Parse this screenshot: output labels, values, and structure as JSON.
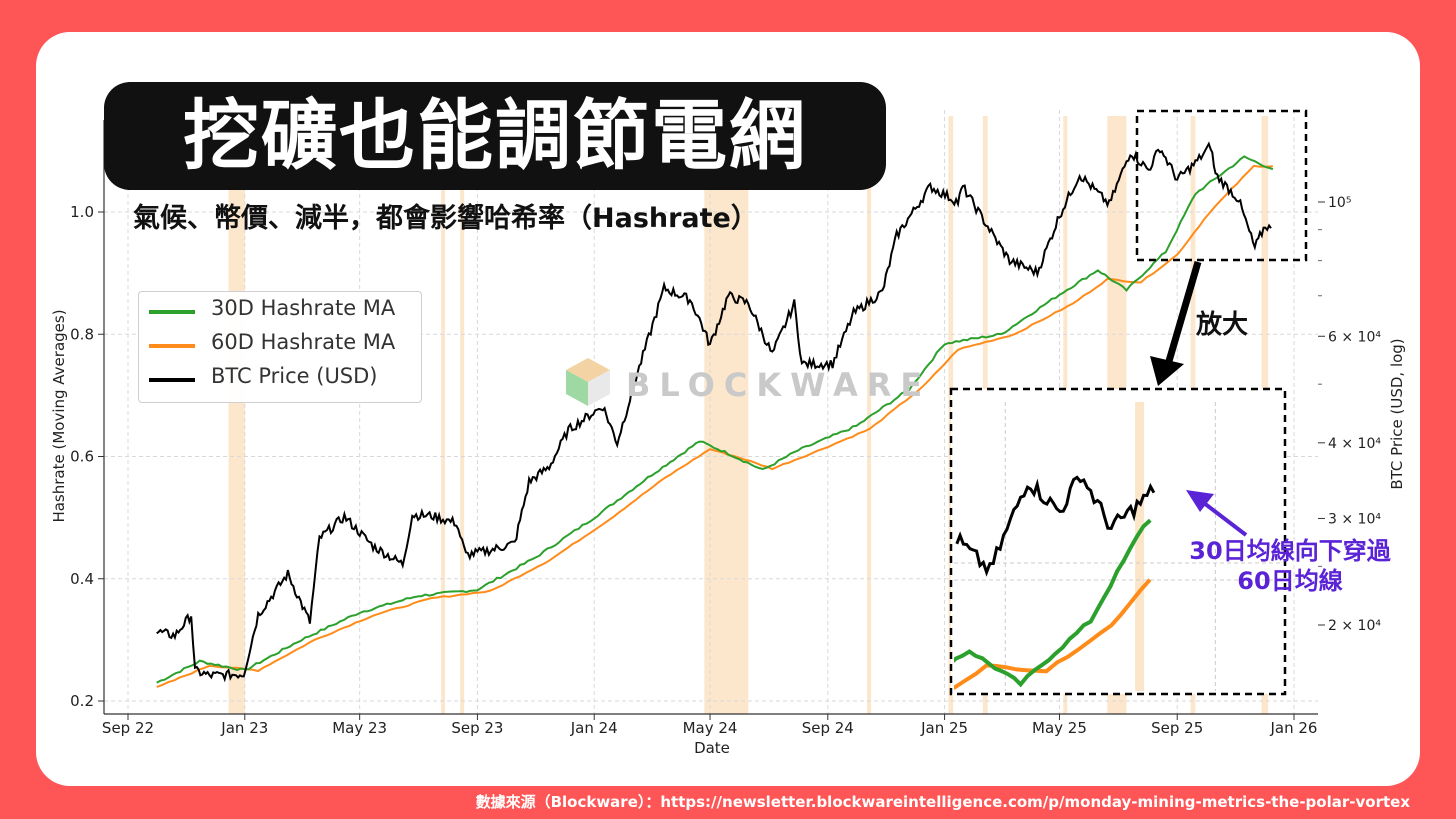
{
  "title": "挖礦也能調節電網",
  "subtitle": "氣候、幣價、減半，都會影響哈希率（Hashrate）",
  "source_note": "數據來源（Blockware）：https://newsletter.blockwareintelligence.com/p/monday-mining-metrics-the-polar-vortex",
  "zoom_label": "放大",
  "annotation": [
    "30日均線向下穿過",
    "60日均線"
  ],
  "watermark": "BLOCKWARE",
  "colors": {
    "background": "#fe5656",
    "ma30": "#2ca02c",
    "ma60": "#ff8c1a",
    "btc": "#000000",
    "shade": "#fbe3c4",
    "annotation": "#5b23d6"
  },
  "chart_data": {
    "type": "line",
    "xlabel": "Date",
    "ylabel": "Hashrate (Moving Averages)",
    "y2label": "BTC Price (USD, log)",
    "x_ticks": [
      "Sep 22",
      "Jan 23",
      "May 23",
      "Sep 23",
      "Jan 24",
      "May 24",
      "Sep 24",
      "Jan 25",
      "May 25",
      "Sep 25",
      "Jan 26"
    ],
    "y_ticks": [
      "0.2",
      "0.4",
      "0.6",
      "0.8",
      "1.0"
    ],
    "ylim": [
      0.185,
      1.08
    ],
    "y2_ticks": [
      {
        "value": 20000,
        "label": "2 × 10⁴"
      },
      {
        "value": 30000,
        "label": "3 × 10⁴"
      },
      {
        "value": 40000,
        "label": "4 × 10⁴"
      },
      {
        "value": 60000,
        "label": "6 × 10⁴"
      },
      {
        "value": 100000,
        "label": "10⁵"
      }
    ],
    "y2_scale": "log",
    "legend_position": "upper-left",
    "grid": true,
    "series": [
      {
        "name": "30D Hashrate MA",
        "points": [
          [
            "2022-10-01",
            0.23
          ],
          [
            "2022-11-15",
            0.265
          ],
          [
            "2023-01-01",
            0.25
          ],
          [
            "2023-03-01",
            0.3
          ],
          [
            "2023-05-01",
            0.345
          ],
          [
            "2023-07-01",
            0.372
          ],
          [
            "2023-09-01",
            0.382
          ],
          [
            "2023-11-01",
            0.435
          ],
          [
            "2024-01-01",
            0.5
          ],
          [
            "2024-03-01",
            0.57
          ],
          [
            "2024-04-20",
            0.625
          ],
          [
            "2024-05-20",
            0.605
          ],
          [
            "2024-06-25",
            0.578
          ],
          [
            "2024-08-01",
            0.61
          ],
          [
            "2024-10-01",
            0.65
          ],
          [
            "2024-11-25",
            0.71
          ],
          [
            "2025-01-01",
            0.785
          ],
          [
            "2025-03-01",
            0.8
          ],
          [
            "2025-05-01",
            0.865
          ],
          [
            "2025-06-10",
            0.905
          ],
          [
            "2025-07-10",
            0.872
          ],
          [
            "2025-08-20",
            0.935
          ],
          [
            "2025-09-20",
            1.03
          ],
          [
            "2025-11-10",
            1.09
          ],
          [
            "2025-12-10",
            1.07
          ]
        ]
      },
      {
        "name": "60D Hashrate MA",
        "points": [
          [
            "2022-10-01",
            0.222
          ],
          [
            "2022-11-25",
            0.258
          ],
          [
            "2023-01-15",
            0.25
          ],
          [
            "2023-03-15",
            0.3
          ],
          [
            "2023-05-15",
            0.34
          ],
          [
            "2023-07-15",
            0.368
          ],
          [
            "2023-09-15",
            0.38
          ],
          [
            "2023-11-15",
            0.43
          ],
          [
            "2024-01-15",
            0.495
          ],
          [
            "2024-03-15",
            0.565
          ],
          [
            "2024-05-01",
            0.612
          ],
          [
            "2024-06-01",
            0.598
          ],
          [
            "2024-07-05",
            0.58
          ],
          [
            "2024-08-15",
            0.605
          ],
          [
            "2024-10-15",
            0.645
          ],
          [
            "2024-12-10",
            0.715
          ],
          [
            "2025-01-15",
            0.775
          ],
          [
            "2025-03-15",
            0.8
          ],
          [
            "2025-05-15",
            0.85
          ],
          [
            "2025-06-20",
            0.89
          ],
          [
            "2025-07-25",
            0.885
          ],
          [
            "2025-09-01",
            0.93
          ],
          [
            "2025-10-05",
            1.0
          ],
          [
            "2025-11-20",
            1.075
          ],
          [
            "2025-12-10",
            1.075
          ]
        ]
      },
      {
        "name": "BTC Price (USD)",
        "axis": "y2",
        "points": [
          [
            "2022-10-01",
            19500
          ],
          [
            "2022-10-20",
            19200
          ],
          [
            "2022-11-06",
            20800
          ],
          [
            "2022-11-10",
            16800
          ],
          [
            "2022-11-25",
            16500
          ],
          [
            "2022-12-31",
            16600
          ],
          [
            "2023-01-15",
            20800
          ],
          [
            "2023-02-15",
            24300
          ],
          [
            "2023-03-10",
            20200
          ],
          [
            "2023-03-20",
            27800
          ],
          [
            "2023-04-15",
            30200
          ],
          [
            "2023-05-15",
            27000
          ],
          [
            "2023-06-15",
            25200
          ],
          [
            "2023-06-25",
            30400
          ],
          [
            "2023-07-15",
            30300
          ],
          [
            "2023-08-10",
            29500
          ],
          [
            "2023-08-20",
            26100
          ],
          [
            "2023-09-15",
            26600
          ],
          [
            "2023-10-10",
            27300
          ],
          [
            "2023-10-25",
            34500
          ],
          [
            "2023-11-15",
            36500
          ],
          [
            "2023-12-05",
            42000
          ],
          [
            "2024-01-10",
            46000
          ],
          [
            "2024-01-25",
            40000
          ],
          [
            "2024-02-15",
            52000
          ],
          [
            "2024-03-14",
            72000
          ],
          [
            "2024-04-10",
            69000
          ],
          [
            "2024-04-20",
            64000
          ],
          [
            "2024-05-01",
            58000
          ],
          [
            "2024-05-20",
            70000
          ],
          [
            "2024-06-10",
            68000
          ],
          [
            "2024-07-05",
            56000
          ],
          [
            "2024-07-28",
            68000
          ],
          [
            "2024-08-05",
            54000
          ],
          [
            "2024-09-06",
            54000
          ],
          [
            "2024-09-28",
            65500
          ],
          [
            "2024-10-28",
            71000
          ],
          [
            "2024-11-12",
            88000
          ],
          [
            "2024-12-17",
            106000
          ],
          [
            "2025-01-15",
            100000
          ],
          [
            "2025-01-20",
            106000
          ],
          [
            "2025-02-25",
            86000
          ],
          [
            "2025-03-10",
            80000
          ],
          [
            "2025-04-08",
            76500
          ],
          [
            "2025-05-01",
            95000
          ],
          [
            "2025-05-22",
            111000
          ],
          [
            "2025-06-22",
            99000
          ],
          [
            "2025-07-14",
            121000
          ],
          [
            "2025-08-02",
            113000
          ],
          [
            "2025-08-14",
            123000
          ],
          [
            "2025-09-01",
            109000
          ],
          [
            "2025-09-20",
            116000
          ],
          [
            "2025-10-06",
            124000
          ],
          [
            "2025-10-11",
            111000
          ],
          [
            "2025-11-04",
            101000
          ],
          [
            "2025-11-21",
            84000
          ],
          [
            "2025-12-02",
            91500
          ],
          [
            "2025-12-08",
            90500
          ]
        ]
      }
    ],
    "shaded_ranges": [
      [
        "2022-12-15",
        "2023-01-01"
      ],
      [
        "2023-07-25",
        "2023-07-28"
      ],
      [
        "2023-08-14",
        "2023-08-16"
      ],
      [
        "2024-04-25",
        "2024-06-10"
      ],
      [
        "2024-10-12",
        "2024-10-14"
      ],
      [
        "2025-01-05",
        "2025-01-10"
      ],
      [
        "2025-02-10",
        "2025-02-15"
      ],
      [
        "2025-05-05",
        "2025-05-08"
      ],
      [
        "2025-06-20",
        "2025-07-10"
      ],
      [
        "2025-09-15",
        "2025-09-20"
      ],
      [
        "2025-11-28",
        "2025-12-05"
      ]
    ],
    "inset": {
      "label": "zoom",
      "x_range": [
        "2025-06-01",
        "2025-12-10"
      ]
    }
  }
}
